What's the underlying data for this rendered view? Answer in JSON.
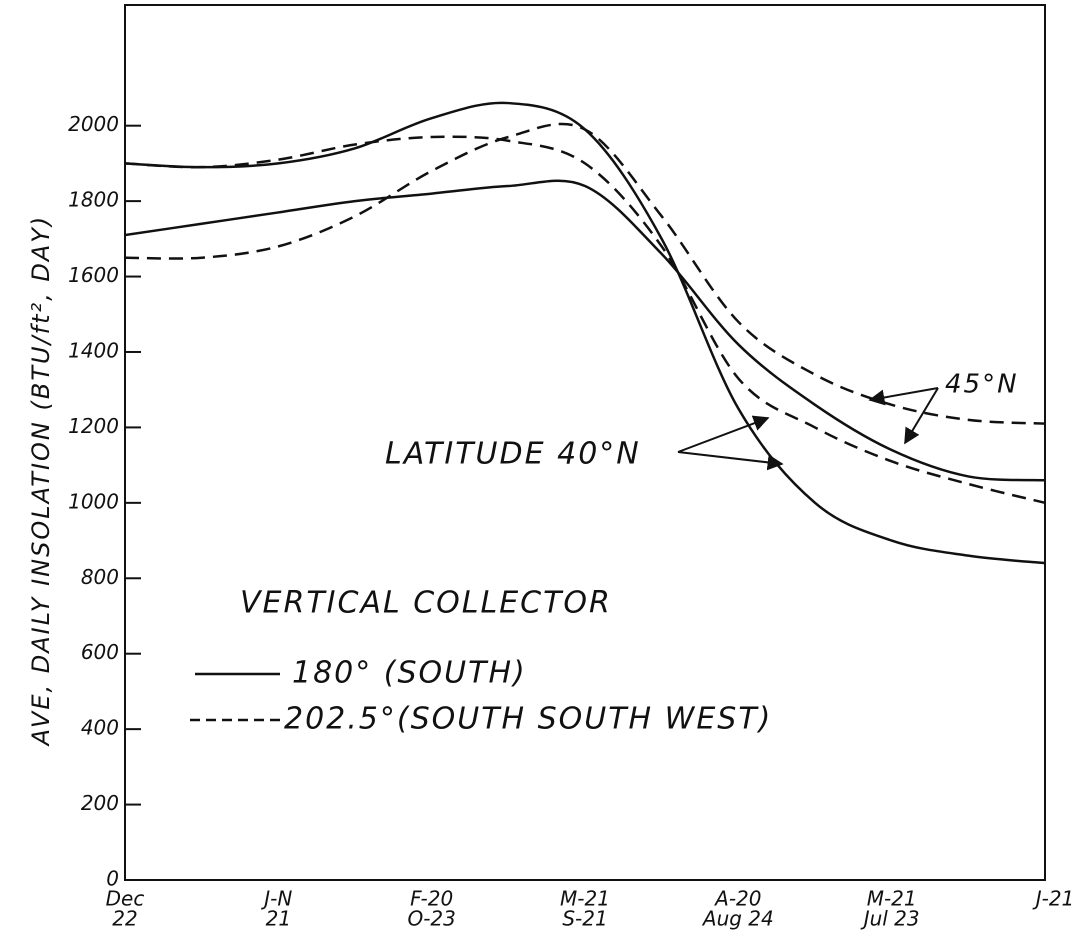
{
  "chart_data": {
    "type": "line",
    "y_label": "AVE, DAILY INSOLATION (BTU/ft², DAY)",
    "categories": [
      [
        "Dec",
        "22"
      ],
      null,
      [
        "J-N",
        "21"
      ],
      null,
      [
        "F-20",
        "O-23"
      ],
      null,
      [
        "M-21",
        "S-21"
      ],
      null,
      [
        "A-20",
        "Aug 24"
      ],
      null,
      [
        "M-21",
        "Jul 23"
      ],
      null,
      [
        "J-21"
      ]
    ],
    "ylim": [
      0,
      2320
    ],
    "yticks": [
      0,
      200,
      400,
      600,
      800,
      1000,
      1200,
      1400,
      1600,
      1800,
      2000
    ],
    "legend": {
      "title": "VERTICAL COLLECTOR",
      "entries": [
        {
          "label": "180° (SOUTH)",
          "line_style": "solid"
        },
        {
          "label": "202.5°(SOUTH SOUTH WEST)",
          "line_style": "dashed"
        }
      ]
    },
    "annotations": [
      "LATITUDE 40°N",
      "45°N"
    ],
    "series": [
      {
        "line_style": "solid",
        "color": "#111111",
        "values": [
          1900,
          1890,
          1900,
          1940,
          2020,
          2060,
          1990,
          1700,
          1250,
          1000,
          900,
          860,
          840
        ]
      },
      {
        "line_style": "solid",
        "color": "#111111",
        "values": [
          1710,
          1740,
          1770,
          1800,
          1820,
          1840,
          1840,
          1660,
          1420,
          1260,
          1140,
          1070,
          1060
        ]
      },
      {
        "line_style": "dashed",
        "color": "#111111",
        "values": [
          1900,
          1890,
          1910,
          1950,
          1970,
          1960,
          1900,
          1680,
          1330,
          1200,
          1110,
          1050,
          1000
        ]
      },
      {
        "line_style": "dashed",
        "color": "#111111",
        "values": [
          1650,
          1650,
          1680,
          1760,
          1880,
          1970,
          1990,
          1760,
          1480,
          1340,
          1260,
          1220,
          1210
        ]
      }
    ]
  }
}
